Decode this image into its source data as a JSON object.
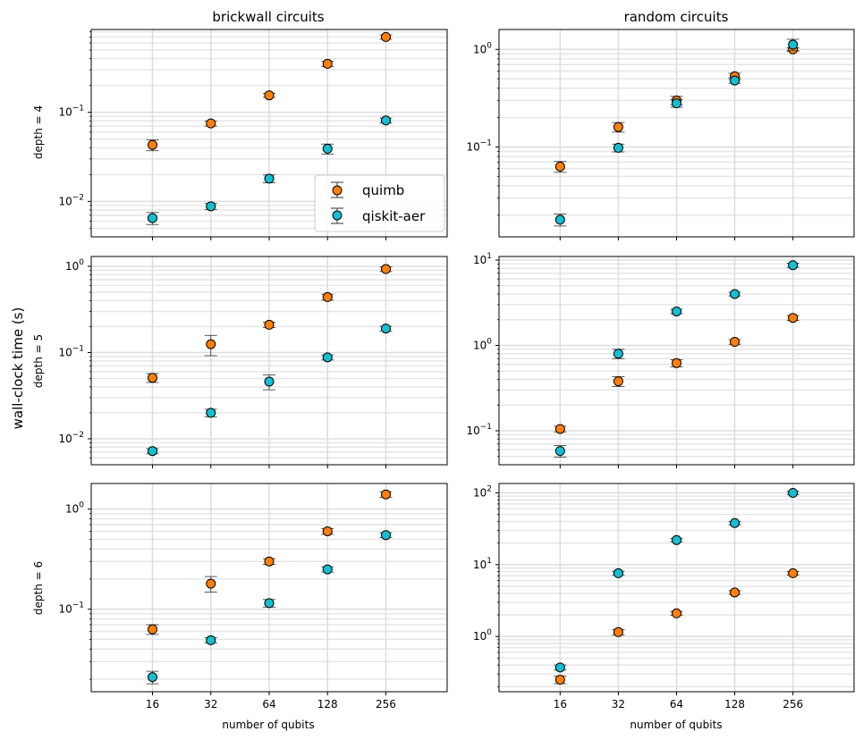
{
  "figure": {
    "ylabel": "wall-clock time (s)",
    "col_titles": [
      "brickwall circuits",
      "random circuits"
    ],
    "row_labels": [
      "depth = 4",
      "depth = 5",
      "depth = 6"
    ],
    "xlabel": "number of qubits",
    "x_ticks": [
      16,
      32,
      64,
      128,
      256
    ],
    "legend": [
      {
        "name": "quimb",
        "color": "#ff7f0e"
      },
      {
        "name": "qiskit-aer",
        "color": "#17becf"
      }
    ],
    "legend_location": "lower-right of top-left panel",
    "grid": true
  },
  "chart_data": [
    {
      "type": "scatter",
      "panel": "brickwall circuits, depth = 4",
      "x": [
        16,
        32,
        64,
        128,
        256
      ],
      "xscale": "log2",
      "yscale": "log",
      "ylim": [
        0.004,
        0.85
      ],
      "y_tick_labels": [
        "10^-2",
        "10^-1"
      ],
      "series": [
        {
          "name": "quimb",
          "y": [
            0.043,
            0.075,
            0.155,
            0.35,
            0.7
          ],
          "err": [
            0.006,
            0.005,
            0.008,
            0.025,
            0.04
          ]
        },
        {
          "name": "qiskit-aer",
          "y": [
            0.0065,
            0.0088,
            0.018,
            0.039,
            0.081
          ],
          "err": [
            0.001,
            0.0007,
            0.0018,
            0.005,
            0.005
          ]
        }
      ]
    },
    {
      "type": "scatter",
      "panel": "random circuits, depth = 4",
      "x": [
        16,
        32,
        64,
        128,
        256
      ],
      "xscale": "log2",
      "yscale": "log",
      "ylim": [
        0.012,
        1.6
      ],
      "y_tick_labels": [
        "10^-1",
        "10^0"
      ],
      "series": [
        {
          "name": "quimb",
          "y": [
            0.063,
            0.16,
            0.3,
            0.53,
            1.0
          ],
          "err": [
            0.008,
            0.018,
            0.03,
            0.04,
            0.04
          ]
        },
        {
          "name": "qiskit-aer",
          "y": [
            0.018,
            0.098,
            0.28,
            0.48,
            1.12
          ],
          "err": [
            0.0025,
            0.009,
            0.025,
            0.03,
            0.15
          ]
        }
      ]
    },
    {
      "type": "scatter",
      "panel": "brickwall circuits, depth = 5",
      "x": [
        16,
        32,
        64,
        128,
        256
      ],
      "xscale": "log2",
      "yscale": "log",
      "ylim": [
        0.005,
        1.3
      ],
      "y_tick_labels": [
        "10^-2",
        "10^-1",
        "10^0"
      ],
      "series": [
        {
          "name": "quimb",
          "y": [
            0.051,
            0.125,
            0.21,
            0.44,
            0.93
          ],
          "err": [
            0.006,
            0.033,
            0.015,
            0.035,
            0.06
          ]
        },
        {
          "name": "qiskit-aer",
          "y": [
            0.0072,
            0.02,
            0.046,
            0.088,
            0.19
          ],
          "err": [
            0.0005,
            0.002,
            0.009,
            0.006,
            0.012
          ]
        }
      ]
    },
    {
      "type": "scatter",
      "panel": "random circuits, depth = 5",
      "x": [
        16,
        32,
        64,
        128,
        256
      ],
      "xscale": "log2",
      "yscale": "log",
      "ylim": [
        0.04,
        11
      ],
      "y_tick_labels": [
        "10^-1",
        "10^0",
        "10^1"
      ],
      "series": [
        {
          "name": "quimb",
          "y": [
            0.105,
            0.38,
            0.62,
            1.1,
            2.1
          ],
          "err": [
            0.008,
            0.05,
            0.06,
            0.07,
            0.14
          ]
        },
        {
          "name": "qiskit-aer",
          "y": [
            0.058,
            0.8,
            2.5,
            4.0,
            8.7
          ],
          "err": [
            0.009,
            0.1,
            0.15,
            0.2,
            0.5
          ]
        }
      ]
    },
    {
      "type": "scatter",
      "panel": "brickwall circuits, depth = 6",
      "x": [
        16,
        32,
        64,
        128,
        256
      ],
      "xscale": "log2",
      "yscale": "log",
      "ylim": [
        0.015,
        1.8
      ],
      "y_tick_labels": [
        "10^-1",
        "10^0"
      ],
      "series": [
        {
          "name": "quimb",
          "y": [
            0.063,
            0.18,
            0.3,
            0.6,
            1.4
          ],
          "err": [
            0.007,
            0.032,
            0.02,
            0.04,
            0.09
          ]
        },
        {
          "name": "qiskit-aer",
          "y": [
            0.021,
            0.049,
            0.115,
            0.25,
            0.55
          ],
          "err": [
            0.003,
            0.003,
            0.01,
            0.015,
            0.03
          ]
        }
      ]
    },
    {
      "type": "scatter",
      "panel": "random circuits, depth = 6",
      "x": [
        16,
        32,
        64,
        128,
        256
      ],
      "xscale": "log2",
      "yscale": "log",
      "ylim": [
        0.17,
        135
      ],
      "y_tick_labels": [
        "10^0",
        "10^1",
        "10^2"
      ],
      "series": [
        {
          "name": "quimb",
          "y": [
            0.25,
            1.15,
            2.1,
            4.1,
            7.6
          ],
          "err": [
            0.03,
            0.1,
            0.13,
            0.25,
            0.4
          ]
        },
        {
          "name": "qiskit-aer",
          "y": [
            0.37,
            7.6,
            22,
            38,
            100
          ],
          "err": [
            0.03,
            0.5,
            1.2,
            2.0,
            5.0
          ]
        }
      ]
    }
  ]
}
